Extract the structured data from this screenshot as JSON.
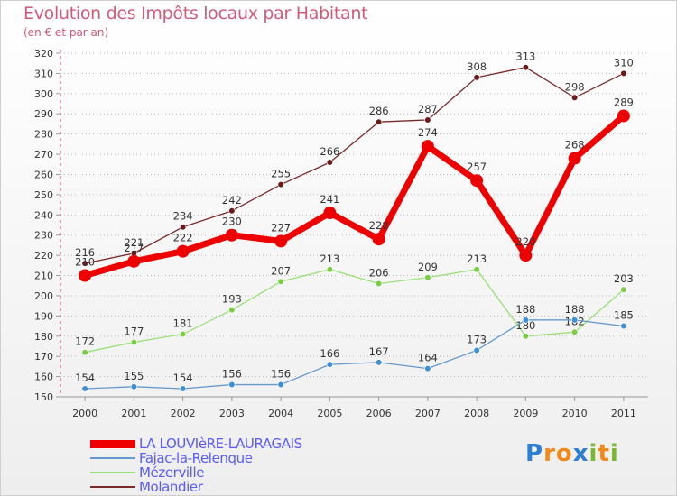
{
  "header": {
    "title": "Evolution des Impôts locaux par Habitant",
    "subtitle": "(en € et par an)"
  },
  "logo": {
    "letters": [
      "P",
      "r",
      "o",
      "x",
      "i",
      "t",
      "i"
    ],
    "colors": [
      "#2d7fd3",
      "#f08a1c",
      "#f08a1c",
      "#2d7fd3",
      "#79b931",
      "#f08a1c",
      "#79b931"
    ]
  },
  "chart_data": {
    "type": "line",
    "title": "Evolution des Impôts locaux par Habitant",
    "subtitle": "(en € et par an)",
    "xlabel": "",
    "ylabel": "",
    "ylim": [
      150,
      320
    ],
    "yticks": [
      150,
      160,
      170,
      180,
      190,
      200,
      210,
      220,
      230,
      240,
      250,
      260,
      270,
      280,
      290,
      300,
      310,
      320
    ],
    "categories": [
      "2000",
      "2001",
      "2002",
      "2003",
      "2004",
      "2005",
      "2006",
      "2007",
      "2008",
      "2009",
      "2010",
      "2011"
    ],
    "grid": "horizontal dotted",
    "legend_position": "bottom-left",
    "series": [
      {
        "name": "Molandier",
        "color": "#7a2a2a",
        "dot": "#6a1a1a",
        "width": 1.3,
        "radius": 3.3,
        "values": [
          216,
          221,
          234,
          242,
          255,
          266,
          286,
          287,
          308,
          313,
          298,
          310
        ]
      },
      {
        "name": "Mézerville",
        "color": "#99e077",
        "dot": "#7ccc44",
        "width": 1.3,
        "radius": 3.3,
        "values": [
          172,
          177,
          181,
          193,
          207,
          213,
          206,
          209,
          213,
          180,
          182,
          203
        ]
      },
      {
        "name": "Fajac-la-Relenque",
        "color": "#6699cc",
        "dot": "#3d8fd6",
        "width": 1.3,
        "radius": 3.3,
        "values": [
          154,
          155,
          154,
          156,
          156,
          166,
          167,
          164,
          173,
          188,
          188,
          185
        ]
      },
      {
        "name": "LA LOUVIèRE-LAURAGAIS",
        "color": "#ee0000",
        "dot": "#ee0000",
        "width": 7,
        "radius": 7,
        "values": [
          210,
          217,
          222,
          230,
          227,
          241,
          228,
          274,
          257,
          220,
          268,
          289
        ]
      }
    ],
    "legend": [
      "LA LOUVIèRE-LAURAGAIS",
      "Fajac-la-Relenque",
      "Mézerville",
      "Molandier"
    ]
  }
}
